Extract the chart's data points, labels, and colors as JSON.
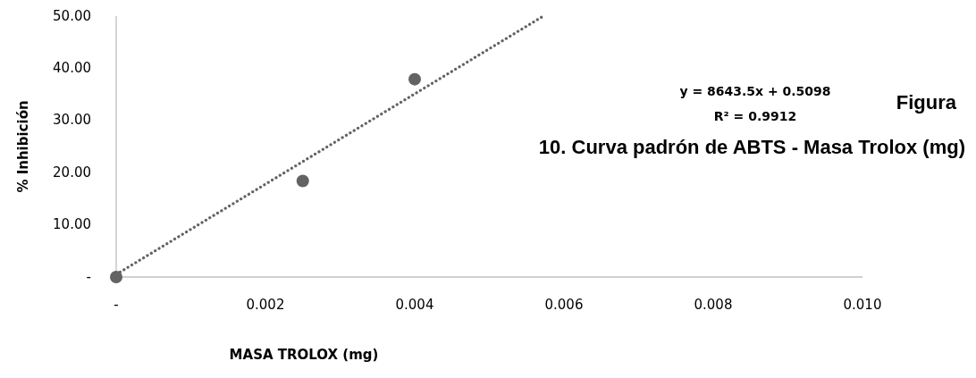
{
  "chart_data": {
    "type": "scatter",
    "title": "Figura 10. Curva padrón de ABTS - Masa Trolox (mg)",
    "xlabel": "MASA TROLOX (mg)",
    "ylabel": "% Inhibición",
    "annotations": [
      "y = 8643.5x + 0.5098",
      "R² = 0.9912"
    ],
    "series": [
      {
        "type": "scatter",
        "color": "#636363",
        "x": [
          0,
          0.0025,
          0.004
        ],
        "values": [
          0,
          18.4,
          37.9
        ],
        "marker": "circle"
      },
      {
        "type": "line",
        "color": "#636363",
        "x": [
          0,
          0.0057
        ],
        "values": [
          0.5,
          49.8
        ],
        "line_style": "dotted",
        "marker": "none"
      }
    ],
    "xlim": [
      0,
      0.01
    ],
    "xticks": [
      {
        "value": 0,
        "label": "-"
      },
      {
        "value": 0.002,
        "label": "0.002"
      },
      {
        "value": 0.004,
        "label": "0.004"
      },
      {
        "value": 0.006,
        "label": "0.006"
      },
      {
        "value": 0.008,
        "label": "0.008"
      },
      {
        "value": 0.01,
        "label": "0.010"
      }
    ],
    "ylim": [
      0,
      50
    ],
    "yticks": [
      {
        "value": 0,
        "label": "-"
      },
      {
        "value": 10,
        "label": "10.00"
      },
      {
        "value": 20,
        "label": "20.00"
      },
      {
        "value": 30,
        "label": "30.00"
      },
      {
        "value": 40,
        "label": "40.00"
      },
      {
        "value": 50,
        "label": "50.00"
      }
    ],
    "grid": false
  }
}
